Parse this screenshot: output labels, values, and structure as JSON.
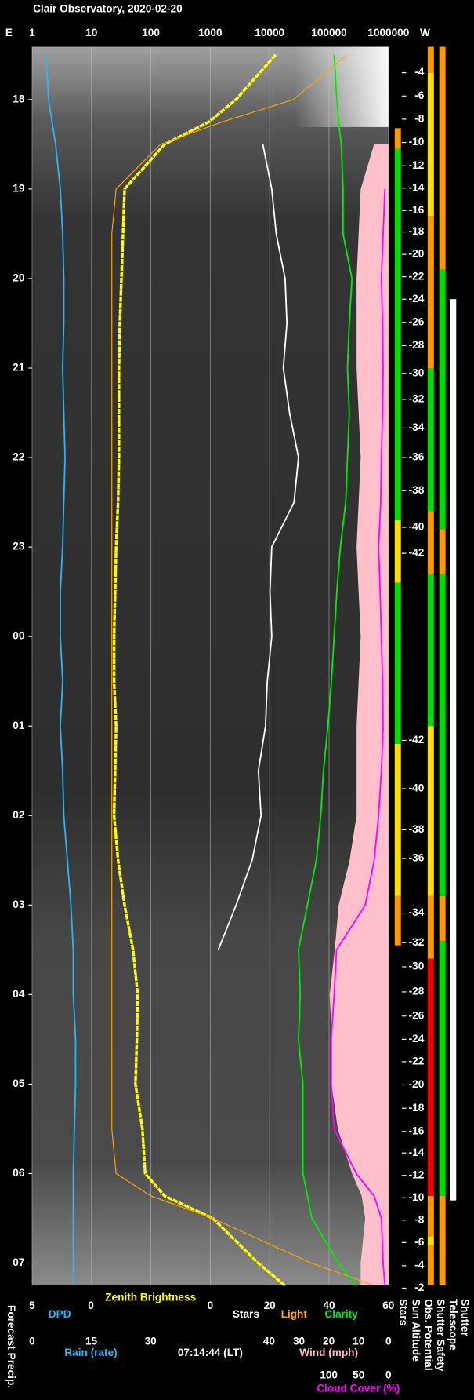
{
  "chart_data": {
    "type": "line",
    "title": "Clair Observatory, 2020-02-20",
    "east_label": "E",
    "west_label": "W",
    "timestamp": "07:14:44 (LT)",
    "precip_label": "Forecast Precip.",
    "ylim": [
      17.41,
      31.25
    ],
    "yticks": [
      18,
      19,
      20,
      21,
      22,
      23,
      {
        "value": 24,
        "label": "00"
      },
      {
        "value": 25,
        "label": "01"
      },
      {
        "value": 26,
        "label": "02"
      },
      {
        "value": 27,
        "label": "03"
      },
      {
        "value": 28,
        "label": "04"
      },
      {
        "value": 29,
        "label": "05"
      },
      {
        "value": 30,
        "label": "06"
      },
      {
        "value": 31,
        "label": "07"
      }
    ],
    "x": [
      17.5,
      18,
      18.25,
      18.5,
      19,
      19.5,
      20,
      20.5,
      21,
      21.5,
      22,
      22.5,
      23,
      23.5,
      24,
      24.5,
      25,
      25.5,
      26,
      26.5,
      27,
      27.5,
      28,
      28.5,
      29,
      29.5,
      30,
      30.25,
      30.5,
      31,
      31.25
    ],
    "grid": true,
    "axes": [
      {
        "log": true,
        "lim": [
          1,
          1000000
        ],
        "ticks": [
          1,
          10,
          100,
          1000,
          10000,
          100000,
          1000000
        ],
        "series": [
          {
            "name": "Zenith Brightness",
            "color": "#ffff00",
            "values": [
              12600,
              2700,
              950,
              170,
              36,
              34,
              32,
              30,
              29,
              29,
              29,
              28,
              26,
              25,
              24,
              24,
              26,
              25,
              24,
              28,
              36,
              50,
              60,
              58,
              55,
              72,
              80,
              170,
              1100,
              6400,
              18000
            ]
          },
          {
            "name": "Light",
            "color": "#ffa500",
            "values": [
              200000,
              25000,
              1600,
              145,
              26,
              22,
              22,
              22,
              22,
              22,
              22,
              22,
              22,
              22,
              22,
              22,
              22,
              22,
              22,
              22,
              22,
              22,
              22,
              22,
              22,
              22,
              26,
              100,
              1100,
              50000,
              570000
            ]
          }
        ]
      },
      {
        "lim": [
          0,
          60
        ],
        "ticks": [
          0,
          20,
          40,
          60
        ],
        "series": [
          {
            "name": "Stars",
            "color": "#ffffff",
            "values": [
              null,
              null,
              null,
              17.7,
              20.7,
              22.2,
              25.2,
              25.8,
              24.6,
              26.7,
              29.7,
              28.2,
              20.7,
              20.1,
              20.7,
              19.2,
              18.6,
              16.2,
              17.1,
              14.1,
              8.7,
              2.7,
              null,
              null,
              null,
              null,
              null,
              null,
              null,
              null,
              null
            ]
          },
          {
            "name": "Clarity",
            "color": "#00ee00",
            "values": [
              41.7,
              42.6,
              43.2,
              44.1,
              44.7,
              44.7,
              47.7,
              46.8,
              46.2,
              46.8,
              46.2,
              45.6,
              43.8,
              42.6,
              41.7,
              40.8,
              39.6,
              38.1,
              37.2,
              35.7,
              32.7,
              29.7,
              30.3,
              29.7,
              31.2,
              31.2,
              31.2,
              32.7,
              34.2,
              43.2,
              49.2
            ]
          }
        ]
      },
      {
        "lim": [
          5,
          0
        ],
        "ticks": [
          5,
          0
        ],
        "series": [
          {
            "name": "DPD",
            "color": "#29b6f6",
            "values": [
              3.8,
              3.6,
              3.3,
              3.0,
              2.6,
              2.4,
              2.3,
              2.3,
              2.4,
              2.3,
              2.2,
              2.3,
              2.4,
              2.6,
              2.6,
              2.4,
              2.6,
              2.4,
              2.3,
              2.0,
              1.7,
              1.5,
              1.5,
              1.3,
              1.3,
              1.4,
              1.5,
              1.5,
              1.5,
              1.5,
              1.5
            ]
          }
        ]
      },
      {
        "title": "Rain (rate)",
        "color": "#29b6f6",
        "lim": [
          0,
          30
        ],
        "ticks": [
          0,
          15,
          30
        ],
        "series": []
      },
      {
        "title": "Wind (mph)",
        "color": "#ffc0cb",
        "lim": [
          40,
          0
        ],
        "ticks": [
          40,
          30,
          20,
          10,
          0
        ],
        "series": [
          {
            "area": true,
            "color": "#ffc0cb",
            "values": [
              null,
              null,
              null,
              4.8,
              9.3,
              10,
              10.7,
              10.7,
              10.7,
              10,
              9.3,
              10,
              10.7,
              10,
              9.3,
              10,
              10.7,
              10.7,
              10.7,
              13,
              16.7,
              18,
              19.7,
              19,
              19.1,
              17,
              12.2,
              9,
              7.8,
              9.3,
              9.3
            ]
          }
        ]
      },
      {
        "title": "Cloud Cover (%)",
        "color": "#ff00ff",
        "lim": [
          100,
          0
        ],
        "ticks": [
          100,
          50,
          0
        ],
        "series": [
          {
            "color": "#ff00ff",
            "values": [
              null,
              null,
              null,
              null,
              6,
              9,
              12,
              10,
              9,
              10,
              12,
              13,
              16.5,
              14,
              12,
              10,
              9,
              12,
              16.5,
              24,
              39,
              87,
              91,
              96,
              96,
              91,
              54,
              24,
              12,
              9,
              6
            ]
          }
        ]
      }
    ],
    "status_columns": [
      {
        "title": "Stars",
        "segments": [
          {
            "from": 18.32,
            "to": 18.55,
            "color": "#ff9900"
          },
          {
            "from": 18.55,
            "to": 22.7,
            "color": "#00dd00"
          },
          {
            "from": 22.7,
            "to": 23.4,
            "color": "#ffdd00"
          },
          {
            "from": 23.4,
            "to": 25.2,
            "color": "#00dd00"
          },
          {
            "from": 25.2,
            "to": 26.9,
            "color": "#ffdd00"
          },
          {
            "from": 26.9,
            "to": 27.45,
            "color": "#ff9900"
          }
        ]
      },
      {
        "title": "Sun Altitude",
        "x": [
          17.7,
          17.96,
          18.22,
          18.48,
          18.74,
          18.99,
          19.24,
          19.48,
          19.73,
          19.98,
          20.23,
          20.49,
          20.75,
          21.06,
          21.35,
          21.67,
          22.0,
          22.37,
          22.78,
          23.07,
          25.16,
          25.7,
          26.16,
          26.48,
          27.09,
          27.42,
          27.69,
          27.97,
          28.24,
          28.5,
          28.75,
          29.01,
          29.27,
          29.53,
          29.77,
          30.02,
          30.27,
          30.52,
          30.77,
          31.03,
          31.28
        ],
        "values": [
          -4,
          -6,
          -8,
          -10,
          -12,
          -14,
          -16,
          -18,
          -20,
          -22,
          -24,
          -26,
          -28,
          -30,
          -32,
          -34,
          -36,
          -38,
          -40,
          -42,
          -42,
          -40,
          -38,
          -36,
          -34,
          -32,
          -30,
          -28,
          -26,
          -24,
          -22,
          -20,
          -18,
          -16,
          -14,
          -12,
          -10,
          -8,
          -6,
          -4,
          -2
        ]
      },
      {
        "title": "Obs. Potential",
        "segments": [
          {
            "from": 17.41,
            "to": 17.7,
            "color": "#ff9900"
          },
          {
            "from": 17.7,
            "to": 19.3,
            "color": "#ffdd00"
          },
          {
            "from": 19.3,
            "to": 21.0,
            "color": "#ff9900"
          },
          {
            "from": 21.0,
            "to": 22.6,
            "color": "#00dd00"
          },
          {
            "from": 22.6,
            "to": 23.3,
            "color": "#ff9900"
          },
          {
            "from": 23.3,
            "to": 25.0,
            "color": "#00dd00"
          },
          {
            "from": 25.0,
            "to": 26.9,
            "color": "#ffdd00"
          },
          {
            "from": 26.9,
            "to": 27.6,
            "color": "#ff9900"
          },
          {
            "from": 27.6,
            "to": 30.25,
            "color": "#ee0000"
          },
          {
            "from": 30.25,
            "to": 30.7,
            "color": "#ff9900"
          },
          {
            "from": 30.7,
            "to": 30.8,
            "color": "#ffdd00"
          },
          {
            "from": 30.8,
            "to": 31.25,
            "color": "#ff9900"
          }
        ]
      },
      {
        "title": "Shutter Safety",
        "segments": [
          {
            "from": 17.41,
            "to": 19.9,
            "color": "#ff9900"
          },
          {
            "from": 19.9,
            "to": 22.8,
            "color": "#00dd00"
          },
          {
            "from": 22.8,
            "to": 23.3,
            "color": "#ff9900"
          },
          {
            "from": 23.3,
            "to": 26.9,
            "color": "#00dd00"
          },
          {
            "from": 26.9,
            "to": 27.4,
            "color": "#ff9900"
          },
          {
            "from": 27.4,
            "to": 30.25,
            "color": "#00dd00"
          },
          {
            "from": 30.25,
            "to": 31.25,
            "color": "#ff9900"
          }
        ]
      },
      {
        "title": [
          "Telescope",
          "Shutter"
        ],
        "segments": [
          {
            "from": 20.23,
            "to": 30.3,
            "color": "#ffffff"
          }
        ]
      }
    ]
  }
}
